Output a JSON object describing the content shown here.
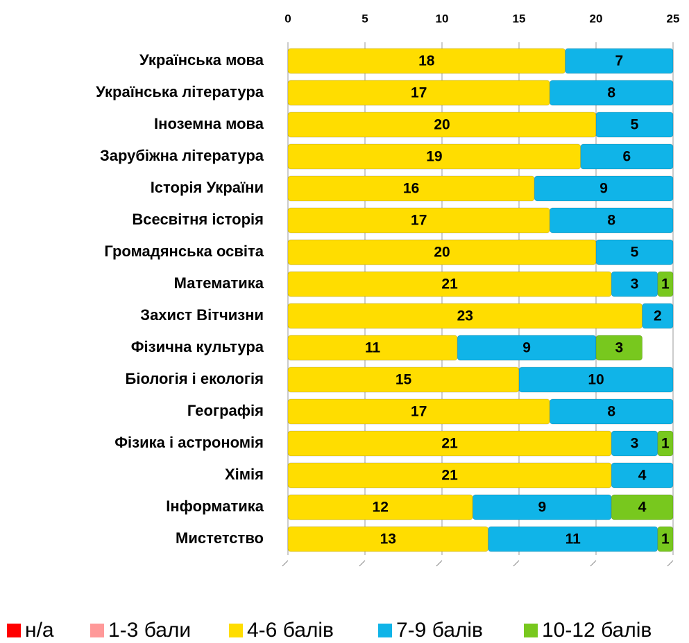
{
  "chart_data": {
    "type": "stacked-bar-horizontal",
    "categories": [
      "Українська мова",
      "Українська література",
      "Іноземна мова",
      "Зарубіжна література",
      "Історія України",
      "Всесвітня історія",
      "Громадянська освіта",
      "Математика",
      "Захист Вітчизни",
      "Фізична культура",
      "Біологія і екологія",
      "Географія",
      "Фізика і астрономія",
      "Хімія",
      "Інформатика",
      "Мистетство"
    ],
    "series": [
      {
        "name": "н/а",
        "color": "#ff0000",
        "values": [
          0,
          0,
          0,
          0,
          0,
          0,
          0,
          0,
          0,
          0,
          0,
          0,
          0,
          0,
          0,
          0
        ]
      },
      {
        "name": "1-3 бали",
        "color": "#ff9999",
        "values": [
          0,
          0,
          0,
          0,
          0,
          0,
          0,
          0,
          0,
          0,
          0,
          0,
          0,
          0,
          0,
          0
        ]
      },
      {
        "name": "4-6 балів",
        "color": "#ffdd00",
        "values": [
          18,
          17,
          20,
          19,
          16,
          17,
          20,
          21,
          23,
          11,
          15,
          17,
          21,
          21,
          12,
          13
        ]
      },
      {
        "name": "7-9 балів",
        "color": "#10b4e8",
        "values": [
          7,
          8,
          5,
          6,
          9,
          8,
          5,
          3,
          2,
          9,
          10,
          8,
          3,
          4,
          9,
          11
        ]
      },
      {
        "name": "10-12 балів",
        "color": "#78c81e",
        "values": [
          0,
          0,
          0,
          0,
          0,
          0,
          0,
          1,
          0,
          3,
          0,
          0,
          1,
          0,
          4,
          1
        ]
      }
    ],
    "xlim": [
      0,
      25
    ],
    "xticks": [
      0,
      5,
      10,
      15,
      20,
      25
    ],
    "legend": "bottom"
  }
}
